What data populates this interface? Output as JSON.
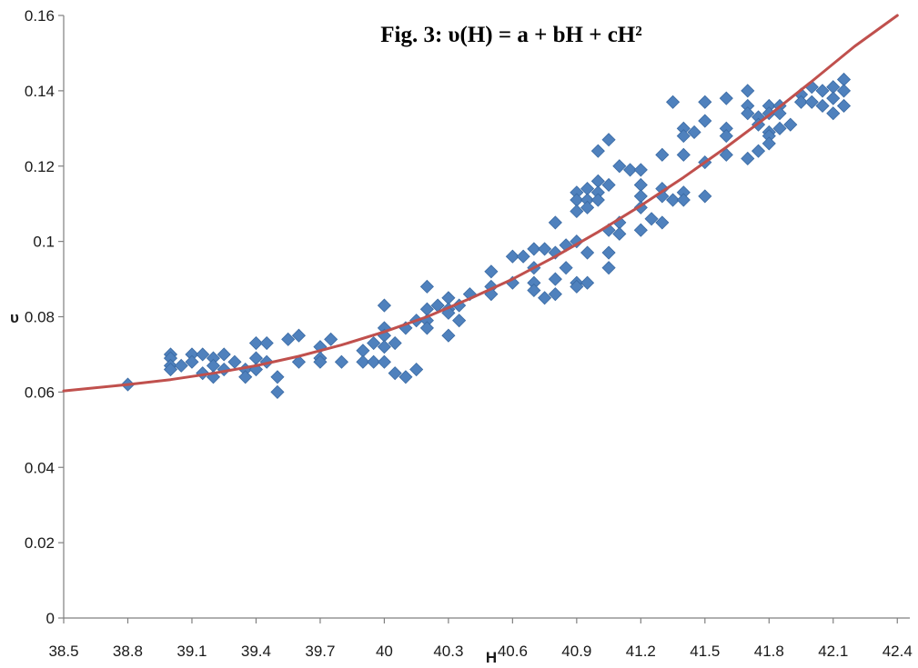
{
  "chart_data": {
    "type": "scatter",
    "title": "Fig. 3: υ(H) = a + bH + cH²",
    "xlabel": "H",
    "ylabel": "υ",
    "xlim": [
      38.5,
      42.45
    ],
    "ylim": [
      0,
      0.16
    ],
    "x_ticks": [
      "38.5",
      "38.8",
      "39.1",
      "39.4",
      "39.7",
      "40",
      "40.3",
      "40.6",
      "40.9",
      "41.2",
      "41.5",
      "41.8",
      "42.1",
      "42.4"
    ],
    "y_ticks": [
      "0",
      "0.02",
      "0.04",
      "0.06",
      "0.08",
      "0.1",
      "0.12",
      "0.14",
      "0.16"
    ],
    "grid": false,
    "legend": "none",
    "colors": {
      "points": "#4f81bd",
      "points_edge": "#3a6aa3",
      "fit_line": "#c0504d",
      "axis": "#808080"
    },
    "fit_line": {
      "name": "",
      "x": [
        38.5,
        38.8,
        39.0,
        39.2,
        39.4,
        39.6,
        39.8,
        40.0,
        40.2,
        40.4,
        40.6,
        40.8,
        41.0,
        41.2,
        41.4,
        41.6,
        41.8,
        42.0,
        42.2,
        42.4
      ],
      "y": [
        0.0603,
        0.062,
        0.0633,
        0.065,
        0.067,
        0.0695,
        0.0725,
        0.076,
        0.08,
        0.0848,
        0.09,
        0.096,
        0.1025,
        0.1095,
        0.117,
        0.125,
        0.1335,
        0.1425,
        0.1518,
        0.16
      ]
    },
    "points": [
      [
        38.8,
        0.062
      ],
      [
        39.0,
        0.07
      ],
      [
        39.0,
        0.069
      ],
      [
        39.0,
        0.067
      ],
      [
        39.0,
        0.066
      ],
      [
        39.05,
        0.067
      ],
      [
        39.1,
        0.07
      ],
      [
        39.1,
        0.068
      ],
      [
        39.15,
        0.07
      ],
      [
        39.15,
        0.065
      ],
      [
        39.2,
        0.069
      ],
      [
        39.2,
        0.067
      ],
      [
        39.2,
        0.064
      ],
      [
        39.25,
        0.07
      ],
      [
        39.25,
        0.066
      ],
      [
        39.3,
        0.068
      ],
      [
        39.35,
        0.066
      ],
      [
        39.35,
        0.064
      ],
      [
        39.4,
        0.073
      ],
      [
        39.4,
        0.069
      ],
      [
        39.4,
        0.066
      ],
      [
        39.45,
        0.073
      ],
      [
        39.45,
        0.068
      ],
      [
        39.5,
        0.064
      ],
      [
        39.5,
        0.06
      ],
      [
        39.55,
        0.074
      ],
      [
        39.6,
        0.075
      ],
      [
        39.6,
        0.068
      ],
      [
        39.7,
        0.072
      ],
      [
        39.7,
        0.069
      ],
      [
        39.7,
        0.068
      ],
      [
        39.75,
        0.074
      ],
      [
        39.8,
        0.068
      ],
      [
        39.9,
        0.071
      ],
      [
        39.9,
        0.068
      ],
      [
        39.95,
        0.073
      ],
      [
        39.95,
        0.068
      ],
      [
        40.0,
        0.083
      ],
      [
        40.0,
        0.077
      ],
      [
        40.0,
        0.075
      ],
      [
        40.0,
        0.072
      ],
      [
        40.0,
        0.068
      ],
      [
        40.05,
        0.073
      ],
      [
        40.05,
        0.065
      ],
      [
        40.1,
        0.077
      ],
      [
        40.1,
        0.064
      ],
      [
        40.15,
        0.079
      ],
      [
        40.15,
        0.066
      ],
      [
        40.2,
        0.088
      ],
      [
        40.2,
        0.082
      ],
      [
        40.2,
        0.079
      ],
      [
        40.2,
        0.077
      ],
      [
        40.25,
        0.083
      ],
      [
        40.3,
        0.085
      ],
      [
        40.3,
        0.082
      ],
      [
        40.3,
        0.081
      ],
      [
        40.3,
        0.075
      ],
      [
        40.35,
        0.083
      ],
      [
        40.35,
        0.079
      ],
      [
        40.4,
        0.086
      ],
      [
        40.5,
        0.092
      ],
      [
        40.5,
        0.088
      ],
      [
        40.5,
        0.086
      ],
      [
        40.6,
        0.096
      ],
      [
        40.6,
        0.089
      ],
      [
        40.65,
        0.096
      ],
      [
        40.7,
        0.098
      ],
      [
        40.7,
        0.093
      ],
      [
        40.7,
        0.089
      ],
      [
        40.7,
        0.087
      ],
      [
        40.75,
        0.098
      ],
      [
        40.75,
        0.085
      ],
      [
        40.8,
        0.105
      ],
      [
        40.8,
        0.097
      ],
      [
        40.8,
        0.09
      ],
      [
        40.8,
        0.086
      ],
      [
        40.85,
        0.099
      ],
      [
        40.85,
        0.093
      ],
      [
        40.9,
        0.113
      ],
      [
        40.9,
        0.111
      ],
      [
        40.9,
        0.108
      ],
      [
        40.9,
        0.1
      ],
      [
        40.9,
        0.089
      ],
      [
        40.9,
        0.088
      ],
      [
        40.95,
        0.114
      ],
      [
        40.95,
        0.111
      ],
      [
        40.95,
        0.109
      ],
      [
        40.95,
        0.097
      ],
      [
        40.95,
        0.089
      ],
      [
        41.0,
        0.124
      ],
      [
        41.0,
        0.116
      ],
      [
        41.0,
        0.113
      ],
      [
        41.0,
        0.111
      ],
      [
        41.05,
        0.127
      ],
      [
        41.05,
        0.115
      ],
      [
        41.05,
        0.103
      ],
      [
        41.05,
        0.097
      ],
      [
        41.05,
        0.093
      ],
      [
        41.1,
        0.12
      ],
      [
        41.1,
        0.105
      ],
      [
        41.1,
        0.102
      ],
      [
        41.15,
        0.119
      ],
      [
        41.2,
        0.119
      ],
      [
        41.2,
        0.115
      ],
      [
        41.2,
        0.112
      ],
      [
        41.2,
        0.109
      ],
      [
        41.2,
        0.103
      ],
      [
        41.25,
        0.106
      ],
      [
        41.3,
        0.123
      ],
      [
        41.3,
        0.114
      ],
      [
        41.3,
        0.112
      ],
      [
        41.3,
        0.105
      ],
      [
        41.35,
        0.137
      ],
      [
        41.35,
        0.111
      ],
      [
        41.4,
        0.13
      ],
      [
        41.4,
        0.128
      ],
      [
        41.4,
        0.123
      ],
      [
        41.4,
        0.113
      ],
      [
        41.4,
        0.111
      ],
      [
        41.45,
        0.129
      ],
      [
        41.5,
        0.137
      ],
      [
        41.5,
        0.132
      ],
      [
        41.5,
        0.121
      ],
      [
        41.5,
        0.112
      ],
      [
        41.6,
        0.138
      ],
      [
        41.6,
        0.13
      ],
      [
        41.6,
        0.128
      ],
      [
        41.6,
        0.123
      ],
      [
        41.7,
        0.14
      ],
      [
        41.7,
        0.136
      ],
      [
        41.7,
        0.134
      ],
      [
        41.7,
        0.122
      ],
      [
        41.75,
        0.133
      ],
      [
        41.75,
        0.131
      ],
      [
        41.75,
        0.124
      ],
      [
        41.8,
        0.136
      ],
      [
        41.8,
        0.134
      ],
      [
        41.8,
        0.129
      ],
      [
        41.8,
        0.128
      ],
      [
        41.8,
        0.126
      ],
      [
        41.85,
        0.136
      ],
      [
        41.85,
        0.134
      ],
      [
        41.85,
        0.13
      ],
      [
        41.9,
        0.131
      ],
      [
        41.95,
        0.139
      ],
      [
        41.95,
        0.137
      ],
      [
        42.0,
        0.141
      ],
      [
        42.0,
        0.137
      ],
      [
        42.05,
        0.14
      ],
      [
        42.05,
        0.136
      ],
      [
        42.1,
        0.141
      ],
      [
        42.1,
        0.138
      ],
      [
        42.1,
        0.134
      ],
      [
        42.15,
        0.143
      ],
      [
        42.15,
        0.14
      ],
      [
        42.15,
        0.136
      ]
    ]
  }
}
